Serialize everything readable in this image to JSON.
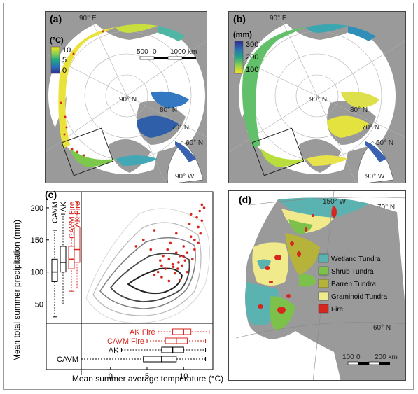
{
  "panels": {
    "a": {
      "label": "(a)",
      "colorbar_unit": "(°C)",
      "colorbar_ticks": [
        "10",
        "5",
        "0"
      ],
      "colorbar_colors": [
        "#f6e51b",
        "#8fd14f",
        "#21a685",
        "#2b70b8",
        "#2e2c8f"
      ],
      "lon_labels": [
        "90° E",
        "90° W"
      ],
      "lat_labels": [
        "90° N",
        "80° N",
        "70° N",
        "60° N"
      ],
      "scale_labels": [
        "500",
        "0",
        "1000 km"
      ]
    },
    "b": {
      "label": "(b)",
      "colorbar_unit": "(mm)",
      "colorbar_ticks": [
        "300",
        "200",
        "100"
      ],
      "colorbar_colors": [
        "#2e2c8f",
        "#2b70b8",
        "#21a685",
        "#8fd14f",
        "#f6e51b"
      ],
      "lon_labels": [
        "90° E",
        "90° W"
      ],
      "lat_labels": [
        "90° N",
        "80° N",
        "70° N",
        "60° N"
      ]
    },
    "c": {
      "label": "(c)",
      "ylabel": "Mean total summer precipitation (mm)",
      "xlabel": "Mean summer average temperature (°C)",
      "box_labels_vertical": [
        "CAVM",
        "AK",
        "CAVM Fire",
        "AK Fire"
      ],
      "box_labels_horizontal": [
        "AK Fire",
        "CAVM Fire",
        "AK",
        "CAVM"
      ]
    },
    "d": {
      "label": "(d)",
      "lon_label": "150° W",
      "lat_labels": [
        "70° N",
        "60° N"
      ],
      "scale_labels": [
        "100",
        "0",
        "200 km"
      ],
      "legend": [
        {
          "label": "Wetland Tundra",
          "color": "#5ab3b0"
        },
        {
          "label": "Shrub Tundra",
          "color": "#7cc24a"
        },
        {
          "label": "Barren Tundra",
          "color": "#b6b33b"
        },
        {
          "label": "Graminoid Tundra",
          "color": "#f0ea8c"
        },
        {
          "label": "Fire",
          "color": "#d7261e"
        }
      ]
    }
  },
  "chart_data": {
    "type": "scatter",
    "xlabel": "Mean summer average temperature (°C)",
    "ylabel": "Mean total summer precipitation (mm)",
    "xlim": [
      -4,
      14
    ],
    "ylim": [
      20,
      225
    ],
    "x_ticks": [
      0,
      5,
      10
    ],
    "y_ticks": [
      50,
      100,
      150,
      200
    ],
    "series": [
      {
        "name": "Fire",
        "color": "#d7261e",
        "points": [
          [
            6,
            95
          ],
          [
            6.5,
            100
          ],
          [
            7,
            110
          ],
          [
            7.5,
            105
          ],
          [
            8,
            120
          ],
          [
            8.5,
            112
          ],
          [
            9,
            130
          ],
          [
            9.5,
            125
          ],
          [
            10,
            140
          ],
          [
            10.5,
            130
          ],
          [
            11,
            155
          ],
          [
            11.5,
            150
          ],
          [
            12,
            170
          ],
          [
            12.5,
            180
          ],
          [
            12.8,
            200
          ],
          [
            12.5,
            205
          ],
          [
            12.2,
            195
          ],
          [
            11,
            190
          ],
          [
            10.8,
            175
          ],
          [
            9.2,
            105
          ],
          [
            8.8,
            98
          ],
          [
            9.8,
            110
          ],
          [
            10.2,
            118
          ],
          [
            7.2,
            125
          ],
          [
            7.8,
            135
          ],
          [
            8.2,
            145
          ],
          [
            9,
            160
          ],
          [
            3.5,
            140
          ],
          [
            4.5,
            150
          ],
          [
            6,
            165
          ],
          [
            5.5,
            135
          ],
          [
            6.8,
            118
          ],
          [
            11.2,
            120
          ],
          [
            10.5,
            100
          ],
          [
            9.5,
            88
          ],
          [
            8,
            86
          ],
          [
            7,
            92
          ],
          [
            8.6,
            108
          ],
          [
            9.3,
            115
          ],
          [
            10,
            124
          ],
          [
            11.5,
            135
          ],
          [
            12,
            145
          ],
          [
            12.3,
            160
          ],
          [
            11.8,
            185
          ]
        ]
      },
      {
        "name": "CAVM",
        "role": "boxplot-y",
        "q": [
          30,
          85,
          100,
          120,
          165
        ]
      },
      {
        "name": "AK",
        "role": "boxplot-y",
        "q": [
          50,
          100,
          115,
          140,
          190
        ]
      },
      {
        "name": "CAVM Fire",
        "role": "boxplot-y",
        "q": [
          70,
          105,
          120,
          140,
          185
        ]
      },
      {
        "name": "AK Fire",
        "role": "boxplot-y",
        "q": [
          75,
          115,
          135,
          170,
          210
        ]
      },
      {
        "name": "AK Fire",
        "role": "boxplot-x",
        "q": [
          6.5,
          8.5,
          10,
          11,
          13.5
        ]
      },
      {
        "name": "CAVM Fire",
        "role": "boxplot-x",
        "q": [
          5,
          7.5,
          9,
          10.5,
          13
        ]
      },
      {
        "name": "AK",
        "role": "boxplot-x",
        "q": [
          1.5,
          7,
          8.5,
          10,
          13
        ]
      },
      {
        "name": "CAVM",
        "role": "boxplot-x",
        "q": [
          -4,
          4.5,
          7,
          9,
          13
        ]
      }
    ]
  }
}
